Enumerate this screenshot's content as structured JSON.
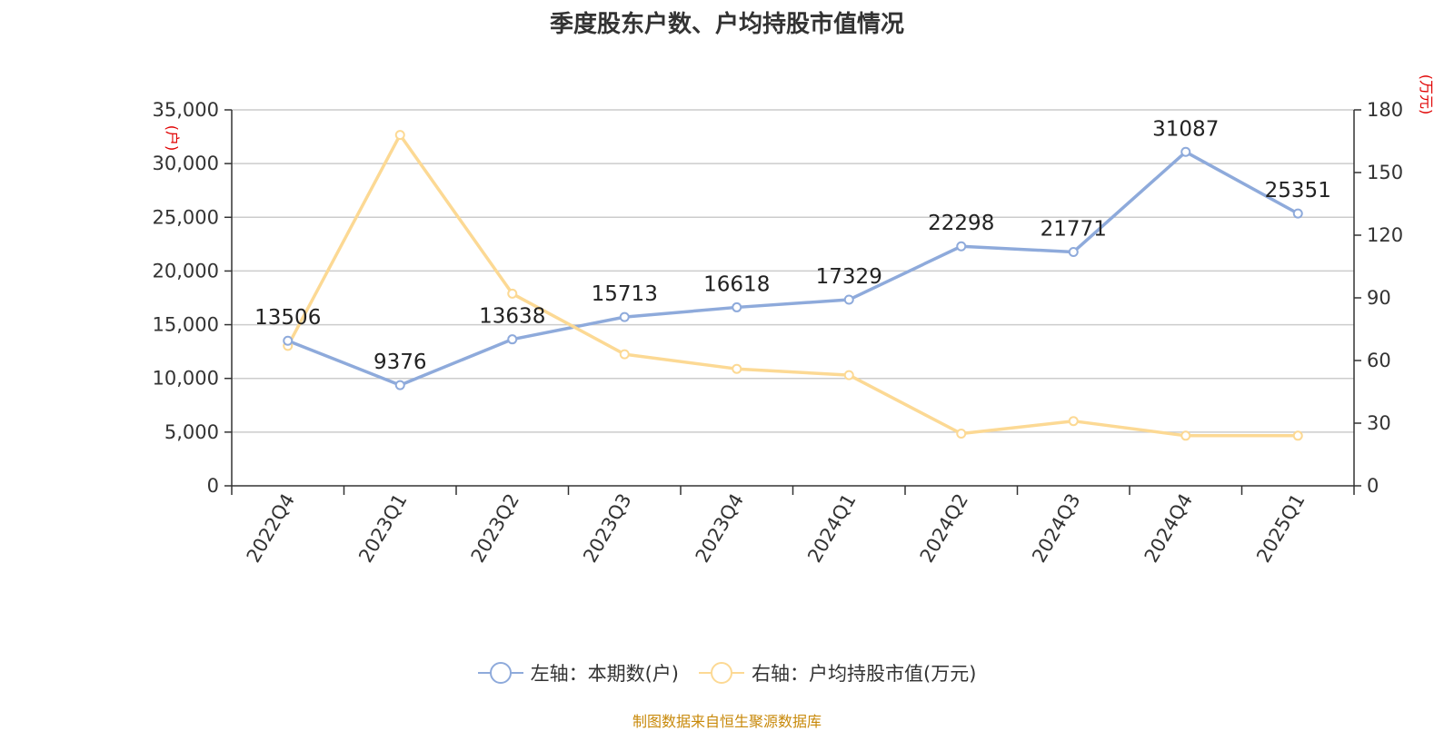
{
  "chart_data": {
    "type": "line",
    "title": "季度股东户数、户均持股市值情况",
    "categories": [
      "2022Q4",
      "2023Q1",
      "2023Q2",
      "2023Q3",
      "2023Q4",
      "2024Q1",
      "2024Q2",
      "2024Q3",
      "2024Q4",
      "2025Q1"
    ],
    "left_axis": {
      "label": "(户)",
      "range": [
        0,
        35000
      ],
      "ticks": [
        "0",
        "5,000",
        "10,000",
        "15,000",
        "20,000",
        "25,000",
        "30,000",
        "35,000"
      ]
    },
    "right_axis": {
      "label": "(万元)",
      "range": [
        0,
        180
      ],
      "ticks": [
        "0",
        "30",
        "60",
        "90",
        "120",
        "150",
        "180"
      ]
    },
    "series": [
      {
        "name": "左轴：本期数(户)",
        "axis": "left",
        "color": "#8eaadb",
        "values": [
          13506,
          9376,
          13638,
          15713,
          16618,
          17329,
          22298,
          21771,
          31087,
          25351
        ],
        "labels": [
          "13506",
          "9376",
          "13638",
          "15713",
          "16618",
          "17329",
          "22298",
          "21771",
          "31087",
          "25351"
        ]
      },
      {
        "name": "右轴：户均持股市值(万元)",
        "axis": "right",
        "color": "#fcd994",
        "values": [
          67,
          168,
          92,
          63,
          56,
          53,
          25,
          31,
          24,
          24
        ]
      }
    ],
    "grid": true,
    "legend_position": "bottom"
  },
  "source": "制图数据来自恒生聚源数据库"
}
